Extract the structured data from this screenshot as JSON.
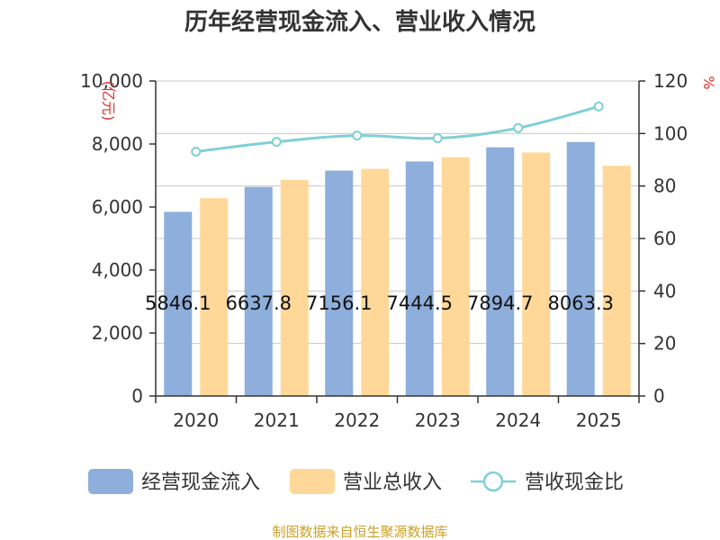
{
  "chart_data": {
    "type": "bar",
    "title": "历年经营现金流入、营业收入情况",
    "categories": [
      "2020",
      "2021",
      "2022",
      "2023",
      "2024",
      "2025"
    ],
    "left_axis": {
      "unit": "(亿元)",
      "range": [
        0,
        10000
      ],
      "ticks": [
        0,
        2000,
        4000,
        6000,
        8000,
        10000
      ],
      "tick_labels": [
        "0",
        "2,000",
        "4,000",
        "6,000",
        "8,000",
        "10,000"
      ]
    },
    "right_axis": {
      "unit": "%",
      "range": [
        0,
        120
      ],
      "ticks": [
        0,
        20,
        40,
        60,
        80,
        100,
        120
      ],
      "tick_labels": [
        "0",
        "20",
        "40",
        "60",
        "80",
        "100",
        "120"
      ]
    },
    "series": [
      {
        "name": "经营现金流入",
        "type": "bar",
        "axis": "left",
        "color": "#8eaedb",
        "values": [
          5846.1,
          6637.8,
          7156.1,
          7444.5,
          7894.7,
          8063.3
        ],
        "labels": [
          "5846.1",
          "6637.8",
          "7156.1",
          "7444.5",
          "7894.7",
          "8063.3"
        ]
      },
      {
        "name": "营业总收入",
        "type": "bar",
        "axis": "left",
        "color": "#ffd899",
        "values": [
          6280,
          6860,
          7210,
          7580,
          7730,
          7310
        ]
      },
      {
        "name": "营收现金比",
        "type": "line",
        "axis": "right",
        "color": "#7fd0d6",
        "values": [
          93.1,
          96.8,
          99.2,
          98.2,
          102.1,
          110.3
        ]
      }
    ],
    "grid": true,
    "legend_position": "bottom",
    "source": "制图数据来自恒生聚源数据库"
  }
}
